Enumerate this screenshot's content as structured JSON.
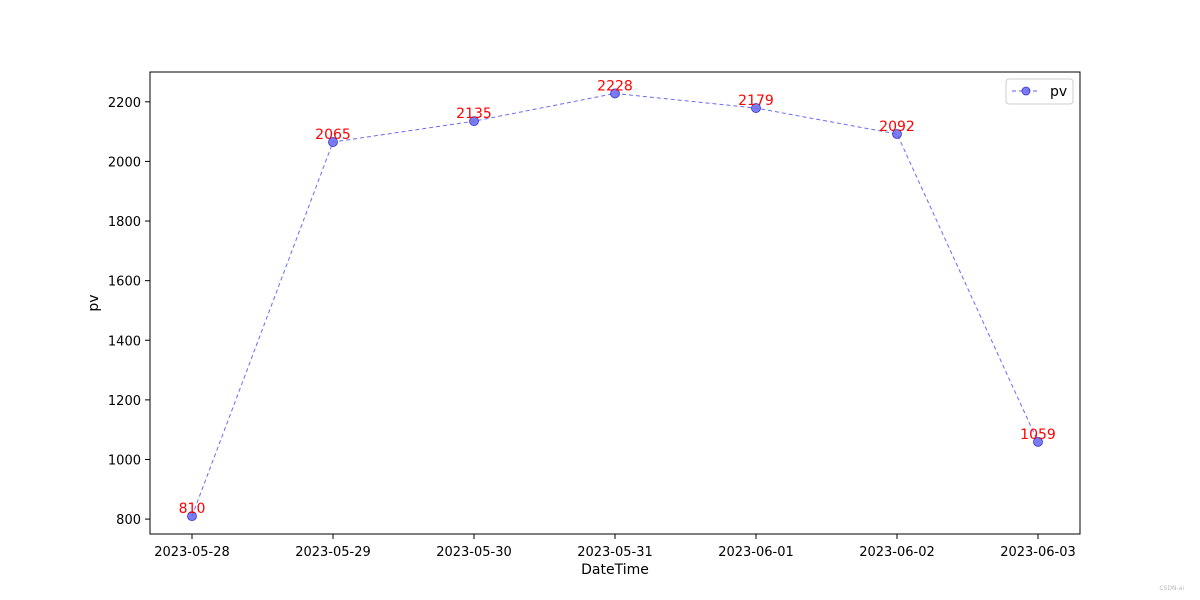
{
  "chart_data": {
    "type": "line",
    "title": "",
    "xlabel": "DateTime",
    "ylabel": "pv",
    "categories": [
      "2023-05-28",
      "2023-05-29",
      "2023-05-30",
      "2023-05-31",
      "2023-06-01",
      "2023-06-02",
      "2023-06-03"
    ],
    "series": [
      {
        "name": "pv",
        "values": [
          810,
          2065,
          2135,
          2228,
          2179,
          2092,
          1059
        ]
      }
    ],
    "ylim": [
      750,
      2300
    ],
    "yticks": [
      800,
      1000,
      1200,
      1400,
      1600,
      1800,
      2000,
      2200
    ],
    "grid": false,
    "legend": "upper right",
    "line_style": "dashed",
    "marker": "circle",
    "colors": {
      "line": "#5b5bf5",
      "marker": "#6666ee",
      "data_label": "#ff0000"
    }
  },
  "watermark": "CSDN-ai"
}
